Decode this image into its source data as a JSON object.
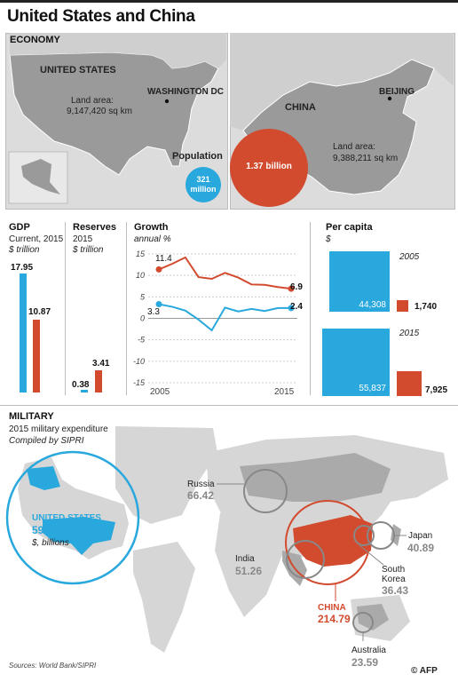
{
  "title": "United States and China",
  "economy": {
    "label": "ECONOMY",
    "us": {
      "name": "UNITED STATES",
      "capital": "WASHINGTON DC",
      "land_label": "Land area:",
      "land_value": "9,147,420 sq km"
    },
    "china": {
      "name": "CHINA",
      "capital": "BEIJING",
      "land_label": "Land area:",
      "land_value": "9,388,211 sq km"
    },
    "population": {
      "label": "Population",
      "us_value": "321",
      "us_unit": "million",
      "china_value": "1.37 billion"
    }
  },
  "gdp": {
    "label": "GDP",
    "sub": "Current, 2015",
    "unit": "$ trillion",
    "us": "17.95",
    "china": "10.87"
  },
  "reserves": {
    "label": "Reserves",
    "sub": "2015",
    "unit": "$ trillion",
    "us": "0.38",
    "china": "3.41"
  },
  "growth": {
    "label": "Growth",
    "sub": "annual %",
    "ticks": [
      "15",
      "10",
      "5",
      "0",
      "-5",
      "-10",
      "-15"
    ],
    "x_start": "2005",
    "x_end": "2015",
    "china_start": "11.4",
    "china_end": "6.9",
    "us_start": "3.3",
    "us_end": "2.4"
  },
  "per_capita": {
    "label": "Per capita",
    "unit": "$",
    "y2005": {
      "year": "2005",
      "us": "44,308",
      "china": "1,740"
    },
    "y2015": {
      "year": "2015",
      "us": "55,837",
      "china": "7,925"
    }
  },
  "military": {
    "label": "MILITARY",
    "sub": "2015 military expenditure",
    "source": "Compiled by SIPRI",
    "us": {
      "name": "UNITED STATES",
      "value": "596.02",
      "unit": "$, billions"
    },
    "china": {
      "name": "CHINA",
      "value": "214.79"
    },
    "russia": {
      "name": "Russia",
      "value": "66.42"
    },
    "japan": {
      "name": "Japan",
      "value": "40.89"
    },
    "india": {
      "name": "India",
      "value": "51.26"
    },
    "south_korea": {
      "name1": "South",
      "name2": "Korea",
      "value": "36.43"
    },
    "australia": {
      "name": "Australia",
      "value": "23.59"
    }
  },
  "footer": {
    "sources": "Sources: World Bank/SIPRI",
    "credit": "© AFP"
  },
  "chart_data": {
    "type": "line",
    "title": "Growth",
    "ylabel": "annual %",
    "ylim": [
      -15,
      15
    ],
    "x": [
      2005,
      2006,
      2007,
      2008,
      2009,
      2010,
      2011,
      2012,
      2013,
      2014,
      2015
    ],
    "series": [
      {
        "name": "CHINA",
        "color": "#d24b2f",
        "values": [
          11.4,
          12.7,
          14.2,
          9.6,
          9.2,
          10.6,
          9.5,
          7.9,
          7.8,
          7.3,
          6.9
        ]
      },
      {
        "name": "UNITED STATES",
        "color": "#29a8dd",
        "values": [
          3.3,
          2.7,
          1.8,
          -0.3,
          -2.8,
          2.5,
          1.6,
          2.2,
          1.7,
          2.4,
          2.4
        ]
      }
    ]
  },
  "colors": {
    "us": "#29a8dd",
    "china": "#d24b2f",
    "map": "#d6d6d6"
  }
}
